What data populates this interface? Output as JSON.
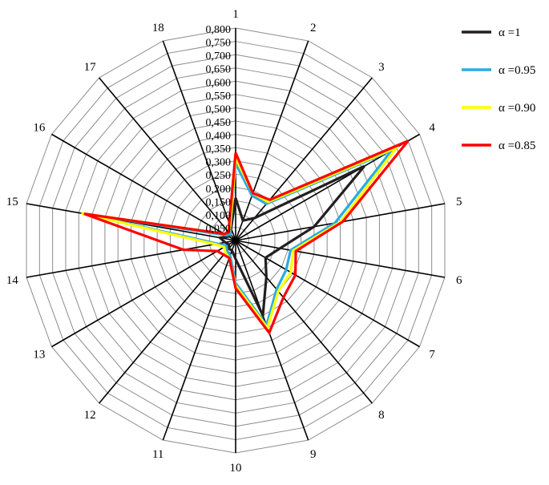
{
  "chart_data": {
    "type": "radar",
    "categories": [
      "1",
      "2",
      "3",
      "4",
      "5",
      "6",
      "7",
      "8",
      "9",
      "10",
      "11",
      "12",
      "13",
      "14",
      "15",
      "16",
      "17",
      "18"
    ],
    "r_ticks": [
      "0,050",
      "0,100",
      "0,150",
      "0,200",
      "0,250",
      "0,300",
      "0,350",
      "0,400",
      "0,450",
      "0,500",
      "0,550",
      "0,600",
      "0,650",
      "0,700",
      "0,750",
      "0,800"
    ],
    "r_min": 0,
    "r_max": 0.8,
    "grid": true,
    "legend_position": "top-right",
    "series": [
      {
        "name": "α =1",
        "color": "#231f20",
        "values": [
          0.16,
          0.08,
          0.11,
          0.56,
          0.3,
          0.17,
          0.13,
          0.18,
          0.3,
          0.07,
          0.04,
          0.04,
          0.03,
          0.04,
          0.06,
          0.03,
          0.03,
          0.05
        ]
      },
      {
        "name": "α =0.95",
        "color": "#29abe2",
        "values": [
          0.29,
          0.18,
          0.18,
          0.68,
          0.38,
          0.21,
          0.22,
          0.24,
          0.34,
          0.16,
          0.06,
          0.05,
          0.04,
          0.07,
          0.58,
          0.04,
          0.03,
          0.06
        ]
      },
      {
        "name": "α =0.90",
        "color": "#ffff00",
        "values": [
          0.31,
          0.19,
          0.19,
          0.7,
          0.4,
          0.22,
          0.24,
          0.25,
          0.35,
          0.17,
          0.07,
          0.06,
          0.05,
          0.08,
          0.59,
          0.05,
          0.04,
          0.06
        ]
      },
      {
        "name": "α =0.85",
        "color": "#ff0000",
        "values": [
          0.33,
          0.19,
          0.2,
          0.75,
          0.41,
          0.23,
          0.26,
          0.28,
          0.37,
          0.18,
          0.07,
          0.07,
          0.08,
          0.2,
          0.58,
          0.05,
          0.04,
          0.07
        ]
      }
    ]
  }
}
